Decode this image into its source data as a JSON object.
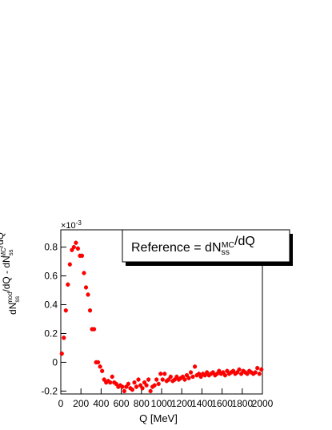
{
  "chart_data": {
    "type": "scatter",
    "xlabel": "Q [MeV]",
    "ylabel": [
      "dN",
      "ss",
      "mod",
      "/dQ - dN",
      "ss",
      "MC",
      "/dQ"
    ],
    "y_multiplier": [
      "×10",
      "-3"
    ],
    "legend_text": [
      "Reference = dN",
      "ss",
      "MC",
      "/dQ"
    ],
    "xlim": [
      0,
      2000
    ],
    "ylim": [
      -0.22,
      0.92
    ],
    "xticks": [
      0,
      200,
      400,
      600,
      800,
      1000,
      1200,
      1400,
      1600,
      1800,
      2000
    ],
    "yticks": [
      -0.2,
      0,
      0.2,
      0.4,
      0.6,
      0.8
    ],
    "color": "#ff0000",
    "x": [
      10,
      30,
      50,
      70,
      90,
      110,
      130,
      150,
      170,
      190,
      210,
      230,
      250,
      270,
      290,
      310,
      330,
      350,
      370,
      390,
      410,
      430,
      450,
      470,
      490,
      510,
      530,
      550,
      570,
      590,
      610,
      630,
      650,
      670,
      690,
      710,
      730,
      750,
      770,
      790,
      810,
      830,
      850,
      870,
      890,
      910,
      930,
      950,
      970,
      990,
      1010,
      1030,
      1050,
      1070,
      1090,
      1110,
      1130,
      1150,
      1170,
      1190,
      1210,
      1230,
      1250,
      1270,
      1290,
      1310,
      1330,
      1350,
      1370,
      1390,
      1410,
      1430,
      1450,
      1470,
      1490,
      1510,
      1530,
      1550,
      1570,
      1590,
      1610,
      1630,
      1650,
      1670,
      1690,
      1710,
      1730,
      1750,
      1770,
      1790,
      1810,
      1830,
      1850,
      1870,
      1890,
      1910,
      1930,
      1950,
      1970,
      1990
    ],
    "values": [
      0.06,
      0.17,
      0.36,
      0.54,
      0.68,
      0.78,
      0.8,
      0.83,
      0.79,
      0.74,
      0.74,
      0.62,
      0.52,
      0.47,
      0.36,
      0.23,
      0.23,
      0.0,
      0.0,
      -0.03,
      -0.06,
      -0.12,
      -0.14,
      -0.13,
      -0.14,
      -0.1,
      -0.14,
      -0.15,
      -0.17,
      -0.16,
      -0.17,
      -0.2,
      -0.17,
      -0.15,
      -0.18,
      -0.19,
      -0.14,
      -0.17,
      -0.12,
      -0.16,
      -0.18,
      -0.14,
      -0.16,
      -0.12,
      -0.2,
      -0.17,
      -0.16,
      -0.12,
      -0.15,
      -0.08,
      -0.12,
      -0.08,
      -0.13,
      -0.12,
      -0.1,
      -0.13,
      -0.12,
      -0.1,
      -0.12,
      -0.11,
      -0.1,
      -0.12,
      -0.09,
      -0.11,
      -0.07,
      -0.1,
      -0.03,
      -0.09,
      -0.08,
      -0.1,
      -0.08,
      -0.09,
      -0.07,
      -0.09,
      -0.08,
      -0.07,
      -0.09,
      -0.08,
      -0.06,
      -0.08,
      -0.07,
      -0.09,
      -0.06,
      -0.08,
      -0.07,
      -0.06,
      -0.08,
      -0.07,
      -0.05,
      -0.08,
      -0.06,
      -0.07,
      -0.08,
      -0.06,
      -0.07,
      -0.08,
      -0.07,
      -0.04,
      -0.08,
      -0.05
    ],
    "errors": [
      0.015,
      0.015,
      0.015,
      0.015,
      0.015,
      0.015,
      0.015,
      0.015,
      0.015,
      0.015,
      0.015,
      0.015,
      0.015,
      0.015,
      0.015,
      0.015,
      0.015,
      0.015,
      0.015,
      0.015,
      0.015,
      0.015,
      0.015,
      0.015,
      0.015,
      0.015,
      0.015,
      0.015,
      0.015,
      0.015,
      0.015,
      0.015,
      0.015,
      0.015,
      0.015,
      0.015,
      0.015,
      0.015,
      0.015,
      0.015,
      0.015,
      0.015,
      0.015,
      0.015,
      0.015,
      0.015,
      0.015,
      0.015,
      0.015,
      0.015,
      0.015,
      0.015,
      0.015,
      0.015,
      0.015,
      0.015,
      0.015,
      0.015,
      0.015,
      0.015,
      0.015,
      0.015,
      0.015,
      0.015,
      0.015,
      0.015,
      0.015,
      0.015,
      0.015,
      0.015,
      0.015,
      0.015,
      0.015,
      0.015,
      0.015,
      0.015,
      0.015,
      0.015,
      0.015,
      0.015,
      0.015,
      0.015,
      0.015,
      0.015,
      0.015,
      0.015,
      0.015,
      0.015,
      0.015,
      0.015,
      0.015,
      0.015,
      0.015,
      0.015,
      0.015,
      0.015,
      0.015,
      0.015,
      0.015,
      0.015
    ]
  }
}
